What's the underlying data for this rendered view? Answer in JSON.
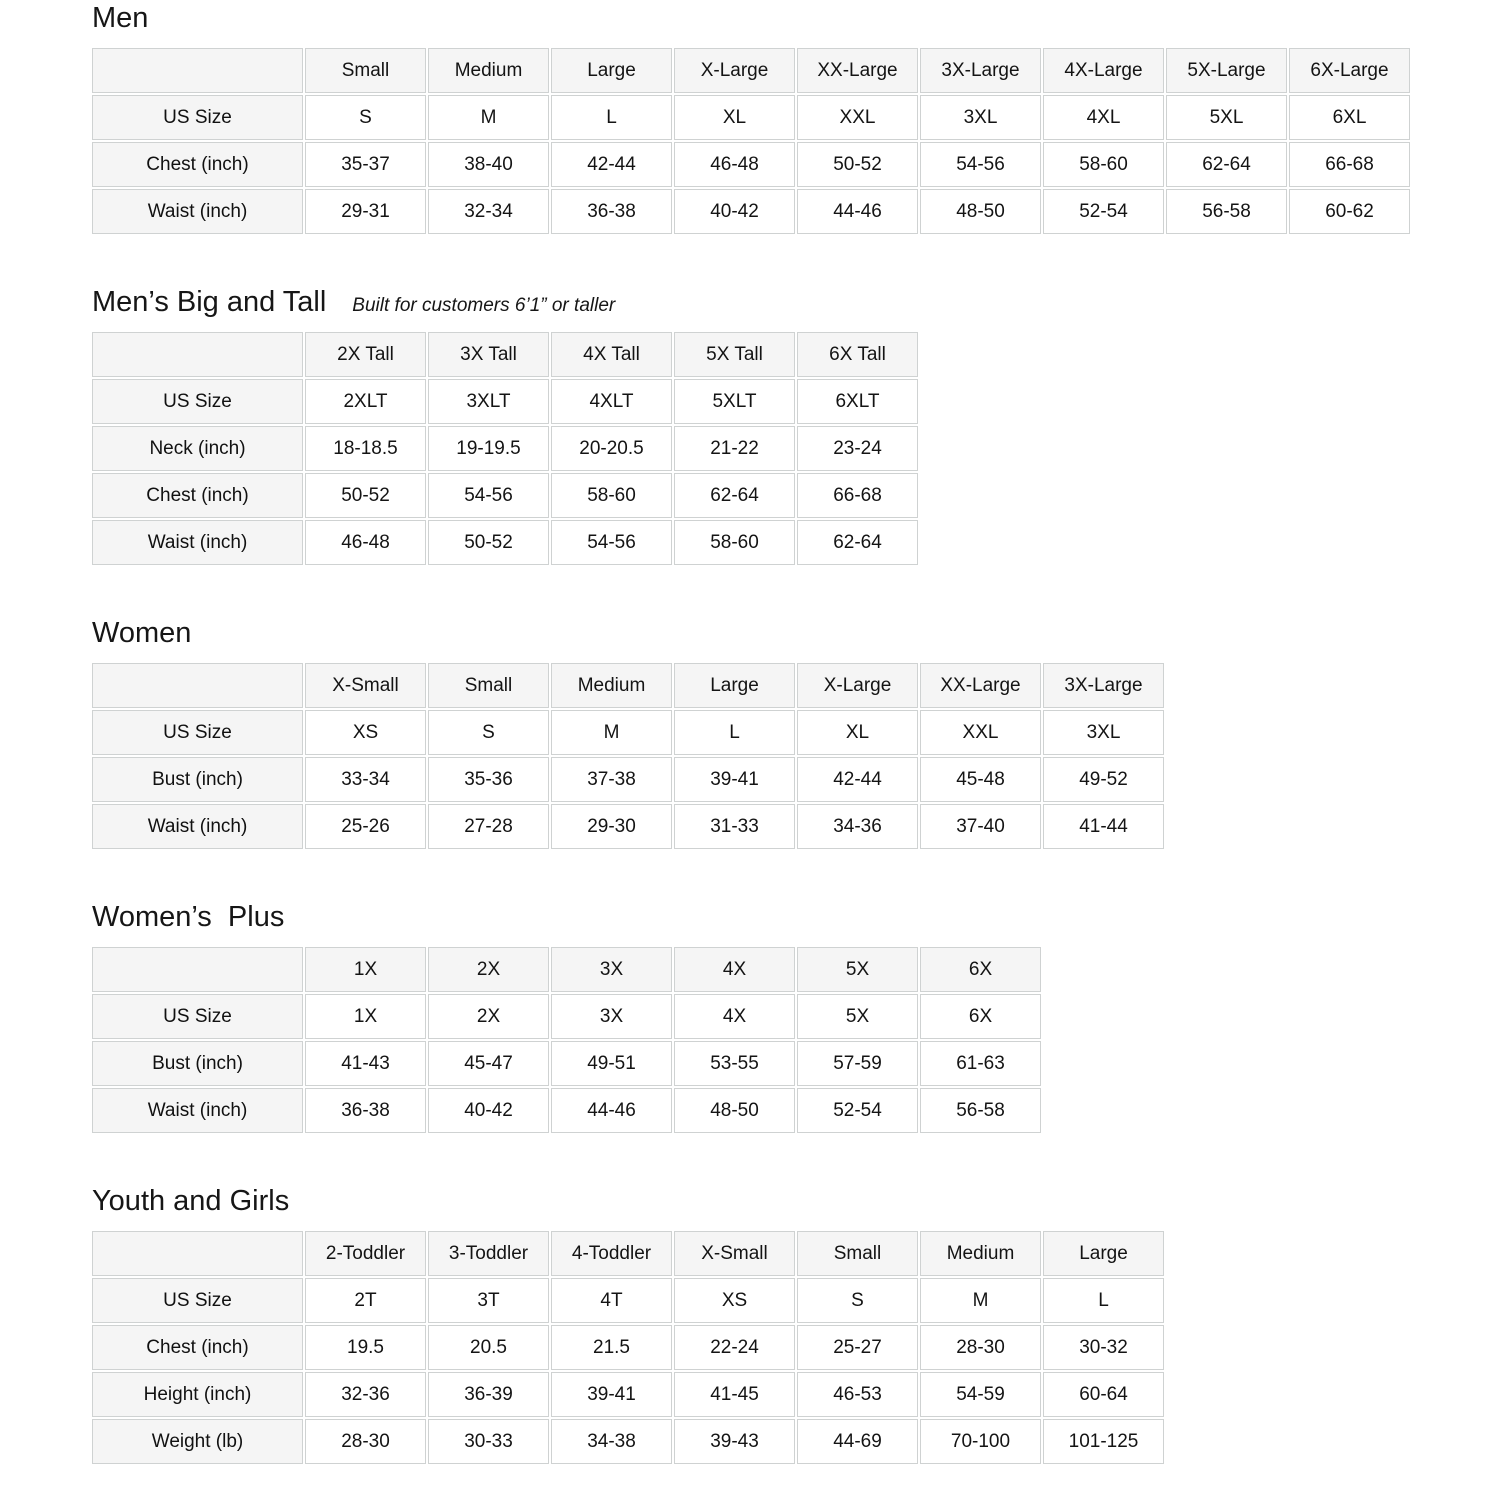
{
  "theme": {
    "background": "#ffffff",
    "text_color": "#161616",
    "header_cell_bg": "#f5f5f5",
    "data_cell_bg": "#ffffff",
    "border_color": "#cfd2d2"
  },
  "tables": [
    {
      "id": "men",
      "title": "Men",
      "subtitle": "",
      "columns": [
        "Small",
        "Medium",
        "Large",
        "X-Large",
        "XX-Large",
        "3X-Large",
        "4X-Large",
        "5X-Large",
        "6X-Large"
      ],
      "rows": [
        {
          "label": "US Size",
          "values": [
            "S",
            "M",
            "L",
            "XL",
            "XXL",
            "3XL",
            "4XL",
            "5XL",
            "6XL"
          ]
        },
        {
          "label": "Chest (inch)",
          "values": [
            "35-37",
            "38-40",
            "42-44",
            "46-48",
            "50-52",
            "54-56",
            "58-60",
            "62-64",
            "66-68"
          ]
        },
        {
          "label": "Waist (inch)",
          "values": [
            "29-31",
            "32-34",
            "36-38",
            "40-42",
            "44-46",
            "48-50",
            "52-54",
            "56-58",
            "60-62"
          ]
        }
      ]
    },
    {
      "id": "mens-big-and-tall",
      "title": "Men’s Big and Tall",
      "subtitle": "Built for customers 6’1” or taller",
      "columns": [
        "2X Tall",
        "3X Tall",
        "4X Tall",
        "5X Tall",
        "6X Tall"
      ],
      "rows": [
        {
          "label": "US Size",
          "values": [
            "2XLT",
            "3XLT",
            "4XLT",
            "5XLT",
            "6XLT"
          ]
        },
        {
          "label": "Neck (inch)",
          "values": [
            "18-18.5",
            "19-19.5",
            "20-20.5",
            "21-22",
            "23-24"
          ]
        },
        {
          "label": "Chest (inch)",
          "values": [
            "50-52",
            "54-56",
            "58-60",
            "62-64",
            "66-68"
          ]
        },
        {
          "label": "Waist (inch)",
          "values": [
            "46-48",
            "50-52",
            "54-56",
            "58-60",
            "62-64"
          ]
        }
      ]
    },
    {
      "id": "women",
      "title": "Women",
      "subtitle": "",
      "columns": [
        "X-Small",
        "Small",
        "Medium",
        "Large",
        "X-Large",
        "XX-Large",
        "3X-Large"
      ],
      "rows": [
        {
          "label": "US Size",
          "values": [
            "XS",
            "S",
            "M",
            "L",
            "XL",
            "XXL",
            "3XL"
          ]
        },
        {
          "label": "Bust (inch)",
          "values": [
            "33-34",
            "35-36",
            "37-38",
            "39-41",
            "42-44",
            "45-48",
            "49-52"
          ]
        },
        {
          "label": "Waist (inch)",
          "values": [
            "25-26",
            "27-28",
            "29-30",
            "31-33",
            "34-36",
            "37-40",
            "41-44"
          ]
        }
      ]
    },
    {
      "id": "womens-plus",
      "title": "Women’s  Plus",
      "subtitle": "",
      "columns": [
        "1X",
        "2X",
        "3X",
        "4X",
        "5X",
        "6X"
      ],
      "rows": [
        {
          "label": "US Size",
          "values": [
            "1X",
            "2X",
            "3X",
            "4X",
            "5X",
            "6X"
          ]
        },
        {
          "label": "Bust (inch)",
          "values": [
            "41-43",
            "45-47",
            "49-51",
            "53-55",
            "57-59",
            "61-63"
          ]
        },
        {
          "label": "Waist (inch)",
          "values": [
            "36-38",
            "40-42",
            "44-46",
            "48-50",
            "52-54",
            "56-58"
          ]
        }
      ]
    },
    {
      "id": "youth-and-girls",
      "title": "Youth and Girls",
      "subtitle": "",
      "columns": [
        "2-Toddler",
        "3-Toddler",
        "4-Toddler",
        "X-Small",
        "Small",
        "Medium",
        "Large"
      ],
      "rows": [
        {
          "label": "US Size",
          "values": [
            "2T",
            "3T",
            "4T",
            "XS",
            "S",
            "M",
            "L"
          ]
        },
        {
          "label": "Chest (inch)",
          "values": [
            "19.5",
            "20.5",
            "21.5",
            "22-24",
            "25-27",
            "28-30",
            "30-32"
          ]
        },
        {
          "label": "Height (inch)",
          "values": [
            "32-36",
            "36-39",
            "39-41",
            "41-45",
            "46-53",
            "54-59",
            "60-64"
          ]
        },
        {
          "label": "Weight (lb)",
          "values": [
            "28-30",
            "30-33",
            "34-38",
            "39-43",
            "44-69",
            "70-100",
            "101-125"
          ]
        }
      ]
    }
  ]
}
